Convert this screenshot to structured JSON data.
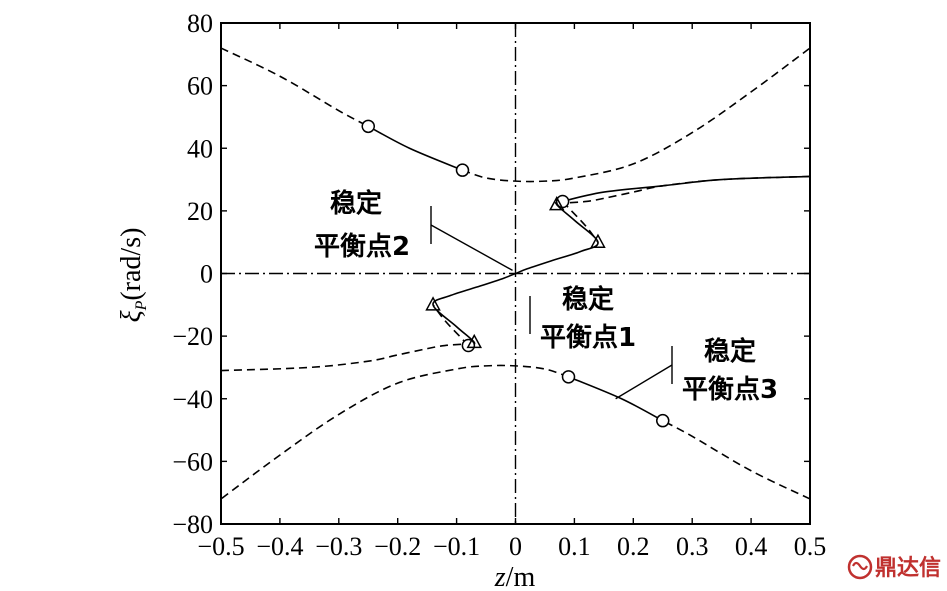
{
  "chart_data": {
    "type": "line",
    "xlabel": {
      "italic": "z",
      "rest": "/m"
    },
    "ylabel": {
      "symbol": "ξ",
      "sub": "P",
      "rest": "(rad/s)"
    },
    "xlim": [
      -0.5,
      0.5
    ],
    "ylim": [
      -80,
      80
    ],
    "xticks": [
      -0.5,
      -0.4,
      -0.3,
      -0.2,
      -0.1,
      0,
      0.1,
      0.2,
      0.3,
      0.4,
      0.5
    ],
    "xtick_labels": [
      "−0.5",
      "−0.4",
      "−0.3",
      "−0.2",
      "−0.1",
      "0",
      "0.1",
      "0.2",
      "0.3",
      "0.4",
      "0.5"
    ],
    "yticks": [
      80,
      60,
      40,
      20,
      0,
      -20,
      -40,
      -60,
      -80
    ],
    "ytick_labels": [
      "80",
      "60",
      "40",
      "20",
      "0",
      "−20",
      "−40",
      "−60",
      "−80"
    ],
    "grid": false,
    "series": [
      {
        "style": "dashed",
        "points": [
          [
            -0.5,
            72
          ],
          [
            -0.4,
            63
          ],
          [
            -0.3,
            52
          ],
          [
            -0.25,
            47
          ]
        ]
      },
      {
        "style": "solid",
        "points": [
          [
            -0.25,
            47
          ],
          [
            -0.18,
            40
          ],
          [
            -0.09,
            33
          ]
        ]
      },
      {
        "style": "dashed",
        "points": [
          [
            -0.09,
            33
          ],
          [
            -0.05,
            30.5
          ],
          [
            0,
            29.5
          ],
          [
            0.05,
            29.5
          ],
          [
            0.1,
            30.5
          ],
          [
            0.2,
            35
          ],
          [
            0.3,
            45
          ],
          [
            0.4,
            58
          ],
          [
            0.5,
            72
          ]
        ]
      },
      {
        "style": "dashed",
        "points": [
          [
            0.5,
            -72
          ],
          [
            0.4,
            -63
          ],
          [
            0.3,
            -52
          ],
          [
            0.25,
            -47
          ]
        ]
      },
      {
        "style": "solid",
        "points": [
          [
            0.25,
            -47
          ],
          [
            0.18,
            -40
          ],
          [
            0.09,
            -33
          ]
        ]
      },
      {
        "style": "dashed",
        "points": [
          [
            0.09,
            -33
          ],
          [
            0.05,
            -30.5
          ],
          [
            0,
            -29.5
          ],
          [
            -0.05,
            -29.5
          ],
          [
            -0.1,
            -30.5
          ],
          [
            -0.2,
            -35
          ],
          [
            -0.3,
            -45
          ],
          [
            -0.4,
            -58
          ],
          [
            -0.5,
            -72
          ]
        ]
      },
      {
        "style": "dashed",
        "points": [
          [
            -0.5,
            -31
          ],
          [
            -0.35,
            -30
          ],
          [
            -0.25,
            -28
          ],
          [
            -0.2,
            -26
          ],
          [
            -0.15,
            -24
          ],
          [
            -0.12,
            -23
          ],
          [
            -0.08,
            -22.5
          ]
        ]
      },
      {
        "style": "dashed",
        "points": [
          [
            0.5,
            31
          ],
          [
            0.35,
            30
          ],
          [
            0.25,
            28
          ],
          [
            0.2,
            26
          ],
          [
            0.15,
            24
          ],
          [
            0.12,
            23
          ],
          [
            0.08,
            22.5
          ]
        ]
      },
      {
        "style": "solid",
        "points": [
          [
            0.5,
            31
          ],
          [
            0.35,
            30
          ],
          [
            0.25,
            28
          ],
          [
            0.15,
            26
          ],
          [
            0.08,
            23
          ],
          [
            0.07,
            22
          ],
          [
            0.1,
            17
          ],
          [
            0.14,
            10
          ],
          [
            0.11,
            7
          ],
          [
            0.06,
            4
          ],
          [
            0.02,
            1.5
          ],
          [
            0,
            0
          ],
          [
            -0.02,
            -1.5
          ],
          [
            -0.06,
            -4
          ],
          [
            -0.11,
            -7
          ],
          [
            -0.14,
            -10
          ],
          [
            -0.1,
            -17
          ],
          [
            -0.07,
            -22
          ],
          [
            -0.08,
            -23
          ]
        ]
      },
      {
        "style": "dashed",
        "points": [
          [
            0.08,
            23
          ],
          [
            0.09,
            21
          ],
          [
            0.12,
            15
          ],
          [
            0.14,
            10
          ]
        ]
      },
      {
        "style": "dashed",
        "points": [
          [
            -0.08,
            -23
          ],
          [
            -0.09,
            -21
          ],
          [
            -0.12,
            -15
          ],
          [
            -0.14,
            -10
          ]
        ]
      }
    ],
    "markers": {
      "circles": [
        [
          -0.25,
          47
        ],
        [
          -0.09,
          33
        ],
        [
          0.08,
          23
        ],
        [
          -0.08,
          -23
        ],
        [
          0.09,
          -33
        ],
        [
          0.25,
          -47
        ]
      ],
      "triangles": [
        [
          0.07,
          22
        ],
        [
          0.14,
          10
        ],
        [
          -0.14,
          -10
        ],
        [
          -0.07,
          -22
        ]
      ]
    },
    "annotations": [
      {
        "line1": "稳定",
        "line2": "平衡点2",
        "point": [
          -0.005,
          1
        ]
      },
      {
        "line1": "稳定",
        "line2": "平衡点1"
      },
      {
        "line1": "稳定",
        "line2": "平衡点3",
        "point": [
          0.17,
          -40
        ]
      }
    ]
  },
  "watermark": {
    "text": "鼎达信",
    "logo": "ruyi-logo-icon"
  }
}
